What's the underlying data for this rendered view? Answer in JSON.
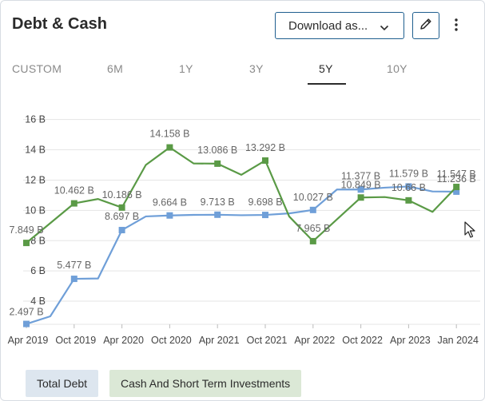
{
  "header": {
    "title": "Debt & Cash",
    "download_label": "Download as...",
    "download_icon": "chevron-down-icon",
    "edit_icon": "pencil-icon",
    "more_icon": "kebab-menu-icon"
  },
  "tabs": [
    {
      "label": "CUSTOM",
      "active": false
    },
    {
      "label": "6M",
      "active": false
    },
    {
      "label": "1Y",
      "active": false
    },
    {
      "label": "3Y",
      "active": false
    },
    {
      "label": "5Y",
      "active": true
    },
    {
      "label": "10Y",
      "active": false
    }
  ],
  "legend": {
    "debt": "Total Debt",
    "cash": "Cash And Short Term Investments"
  },
  "colors": {
    "debt": "#6f9fd8",
    "cash": "#5a9a46",
    "grid": "#e5e5e5",
    "text": "#666666"
  },
  "chart_data": {
    "type": "line",
    "title": "",
    "xlabel": "",
    "ylabel": "",
    "ylim": [
      3,
      17
    ],
    "y_ticks": [
      {
        "value": 4,
        "label": "4 B"
      },
      {
        "value": 6,
        "label": "6 B"
      },
      {
        "value": 8,
        "label": "8 B"
      },
      {
        "value": 10,
        "label": "10 B"
      },
      {
        "value": 12,
        "label": "12 B"
      },
      {
        "value": 14,
        "label": "14 B"
      },
      {
        "value": 16,
        "label": "16 B"
      }
    ],
    "x_ticks": [
      "Apr 2019",
      "Oct 2019",
      "Apr 2020",
      "Oct 2020",
      "Apr 2021",
      "Oct 2021",
      "Apr 2022",
      "Oct 2022",
      "Apr 2023",
      "Jan 2024"
    ],
    "grid": true,
    "legend_position": "bottom-left",
    "series": [
      {
        "name": "Total Debt",
        "color": "#6f9fd8",
        "points": [
          {
            "x": 0,
            "y": 2.497,
            "label": "2.497 B",
            "marker": true
          },
          {
            "x": 0.5,
            "y": 3.0,
            "label": "",
            "marker": false
          },
          {
            "x": 1,
            "y": 5.477,
            "label": "5.477 B",
            "marker": true
          },
          {
            "x": 1.5,
            "y": 5.5,
            "label": "",
            "marker": false
          },
          {
            "x": 2,
            "y": 8.697,
            "label": "8.697 B",
            "marker": true
          },
          {
            "x": 2.5,
            "y": 9.6,
            "label": "",
            "marker": false
          },
          {
            "x": 3,
            "y": 9.664,
            "label": "9.664 B",
            "marker": true
          },
          {
            "x": 3.5,
            "y": 9.7,
            "label": "",
            "marker": false
          },
          {
            "x": 4,
            "y": 9.713,
            "label": "9.713 B",
            "marker": true
          },
          {
            "x": 4.5,
            "y": 9.68,
            "label": "",
            "marker": false
          },
          {
            "x": 5,
            "y": 9.698,
            "label": "9.698 B",
            "marker": true
          },
          {
            "x": 5.5,
            "y": 9.8,
            "label": "",
            "marker": false
          },
          {
            "x": 6,
            "y": 10.027,
            "label": "10.027 B",
            "marker": true
          },
          {
            "x": 6.5,
            "y": 11.377,
            "label": "",
            "marker": false
          },
          {
            "x": 7,
            "y": 11.377,
            "label": "11.377 B",
            "marker": true
          },
          {
            "x": 7.5,
            "y": 11.5,
            "label": "",
            "marker": false
          },
          {
            "x": 8,
            "y": 11.579,
            "label": "11.579 B",
            "marker": true
          },
          {
            "x": 8.5,
            "y": 11.25,
            "label": "",
            "marker": false
          },
          {
            "x": 9,
            "y": 11.236,
            "label": "11.236 B",
            "marker": true
          }
        ]
      },
      {
        "name": "Cash And Short Term Investments",
        "color": "#5a9a46",
        "points": [
          {
            "x": 0,
            "y": 7.849,
            "label": "7.849 B",
            "marker": true
          },
          {
            "x": 1,
            "y": 10.462,
            "label": "10.462 B",
            "marker": true
          },
          {
            "x": 1.5,
            "y": 10.75,
            "label": "",
            "marker": false
          },
          {
            "x": 2,
            "y": 10.186,
            "label": "10.186 B",
            "marker": true
          },
          {
            "x": 2.5,
            "y": 13.0,
            "label": "",
            "marker": false
          },
          {
            "x": 3,
            "y": 14.158,
            "label": "14.158 B",
            "marker": true
          },
          {
            "x": 3.5,
            "y": 13.1,
            "label": "",
            "marker": false
          },
          {
            "x": 4,
            "y": 13.086,
            "label": "13.086 B",
            "marker": true
          },
          {
            "x": 4.5,
            "y": 12.35,
            "label": "",
            "marker": false
          },
          {
            "x": 5,
            "y": 13.292,
            "label": "13.292 B",
            "marker": true
          },
          {
            "x": 5.5,
            "y": 9.6,
            "label": "",
            "marker": false
          },
          {
            "x": 6,
            "y": 7.965,
            "label": "7.965 B",
            "marker": true
          },
          {
            "x": 7,
            "y": 10.849,
            "label": "10.849 B",
            "marker": true
          },
          {
            "x": 7.5,
            "y": 10.88,
            "label": "",
            "marker": false
          },
          {
            "x": 8,
            "y": 10.66,
            "label": "10.66 B",
            "marker": true
          },
          {
            "x": 8.5,
            "y": 9.9,
            "label": "",
            "marker": false
          },
          {
            "x": 9,
            "y": 11.547,
            "label": "11.547 B",
            "marker": true
          }
        ]
      }
    ]
  }
}
